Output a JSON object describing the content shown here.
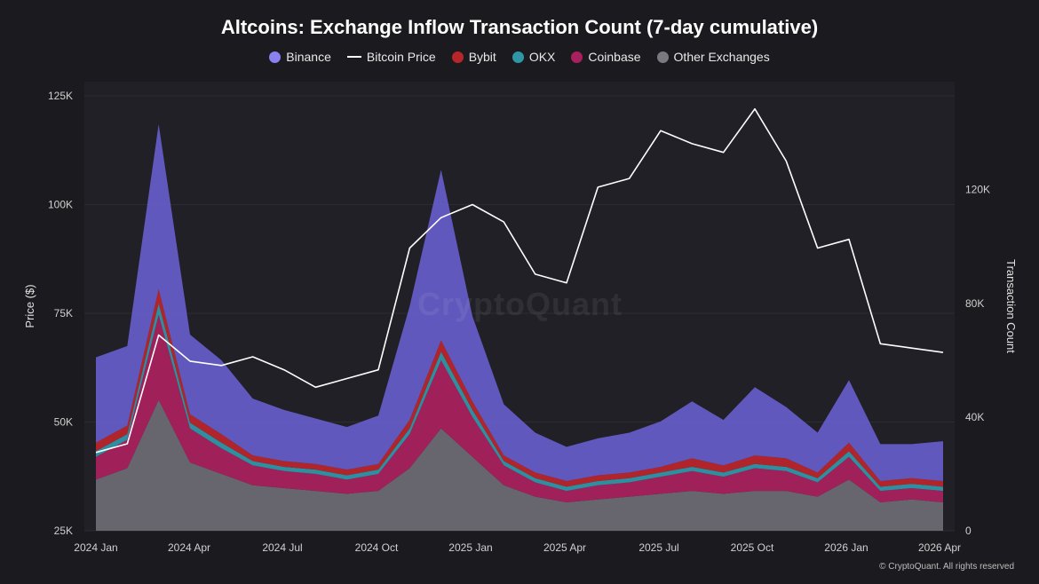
{
  "chart_data": {
    "type": "area",
    "title": "Altcoins: Exchange Inflow Transaction Count (7-day cumulative)",
    "ylabel_left": "Price ($)",
    "ylabel_right": "Transaction Count",
    "yticks_left": [
      "125K",
      "100K",
      "75K",
      "50K",
      "25K"
    ],
    "yticks_right": [
      "120K",
      "80K",
      "40K",
      "0"
    ],
    "ylim_left": [
      25000,
      125000
    ],
    "ylim_right": [
      0,
      153000
    ],
    "xticks": [
      "2024 Jan",
      "2024 Apr",
      "2024 Jul",
      "2024 Oct",
      "2025 Jan",
      "2025 Apr",
      "2025 Jul",
      "2025 Oct",
      "2026 Jan",
      "2026 Apr"
    ],
    "legend_position": "top-center",
    "grid": true,
    "x": [
      "2024 Jan",
      "2024 Feb",
      "2024 Mar",
      "2024 Apr",
      "2024 May",
      "2024 Jun",
      "2024 Jul",
      "2024 Aug",
      "2024 Sep",
      "2024 Oct",
      "2024 Nov",
      "2024 Dec",
      "2025 Jan",
      "2025 Feb",
      "2025 Mar",
      "2025 Apr",
      "2025 May",
      "2025 Jun",
      "2025 Jul",
      "2025 Aug",
      "2025 Sep",
      "2025 Oct",
      "2025 Nov",
      "2025 Dec",
      "2026 Jan",
      "2026 Feb",
      "2026 Mar",
      "2026 Apr"
    ],
    "series": [
      {
        "name": "Other Exchanges",
        "color": "#6b6a72",
        "values": [
          18000,
          22000,
          46000,
          24000,
          20000,
          16000,
          15000,
          14000,
          13000,
          14000,
          22000,
          36000,
          26000,
          16000,
          12000,
          10000,
          11000,
          12000,
          13000,
          14000,
          13000,
          14000,
          14000,
          12000,
          18000,
          10000,
          11000,
          10000
        ]
      },
      {
        "name": "Coinbase",
        "color": "#a8215d",
        "values": [
          8000,
          10000,
          30000,
          12000,
          9000,
          7000,
          6000,
          6000,
          5000,
          6000,
          12000,
          24000,
          14000,
          7000,
          5000,
          4000,
          5000,
          5000,
          6000,
          7000,
          6000,
          8000,
          7000,
          5000,
          8000,
          4000,
          4000,
          4000
        ]
      },
      {
        "name": "OKX",
        "color": "#2f96a8",
        "values": [
          2000,
          2000,
          4000,
          2000,
          2000,
          1500,
          1500,
          1500,
          1500,
          1500,
          2000,
          3000,
          2500,
          1500,
          1500,
          1500,
          1500,
          1500,
          1500,
          1500,
          1500,
          1500,
          1500,
          1500,
          2000,
          1500,
          1500,
          1500
        ]
      },
      {
        "name": "Bybit",
        "color": "#b8262b",
        "values": [
          3000,
          3000,
          5000,
          3000,
          3000,
          2000,
          2000,
          2000,
          2000,
          2000,
          3000,
          4000,
          3000,
          2000,
          2000,
          2000,
          2000,
          2000,
          2000,
          3000,
          2500,
          3000,
          3000,
          2000,
          3000,
          2000,
          2000,
          2000
        ]
      },
      {
        "name": "Binance",
        "color": "#6d63d8",
        "values": [
          30000,
          28000,
          58000,
          28000,
          26000,
          20000,
          18000,
          16000,
          15000,
          17000,
          40000,
          60000,
          30000,
          18000,
          14000,
          12000,
          13000,
          14000,
          16000,
          20000,
          16000,
          24000,
          18000,
          14000,
          22000,
          13000,
          12000,
          14000
        ]
      },
      {
        "name": "Bitcoin Price",
        "color": "#ffffff",
        "values": [
          43000,
          45000,
          70000,
          64000,
          63000,
          65000,
          62000,
          58000,
          60000,
          62000,
          90000,
          97000,
          100000,
          96000,
          84000,
          82000,
          104000,
          106000,
          117000,
          114000,
          112000,
          122000,
          110000,
          90000,
          92000,
          68000,
          67000,
          66000
        ]
      }
    ]
  },
  "watermark": "CryptoQuant",
  "copyright": "© CryptoQuant. All rights reserved"
}
